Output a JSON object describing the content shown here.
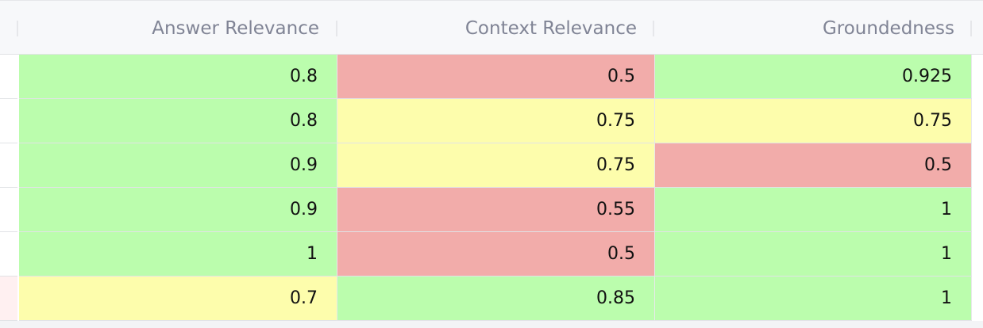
{
  "table": {
    "columns": [
      "Answer Relevance",
      "Context Relevance",
      "Groundedness"
    ],
    "rows": [
      {
        "values": [
          "0.8",
          "0.5",
          "0.925"
        ],
        "status": [
          "good",
          "bad",
          "good"
        ]
      },
      {
        "values": [
          "0.8",
          "0.75",
          "0.75"
        ],
        "status": [
          "good",
          "medium",
          "medium"
        ]
      },
      {
        "values": [
          "0.9",
          "0.75",
          "0.5"
        ],
        "status": [
          "good",
          "medium",
          "bad"
        ]
      },
      {
        "values": [
          "0.9",
          "0.55",
          "1"
        ],
        "status": [
          "good",
          "bad",
          "good"
        ]
      },
      {
        "values": [
          "1",
          "0.5",
          "1"
        ],
        "status": [
          "good",
          "bad",
          "good"
        ]
      },
      {
        "values": [
          "0.7",
          "0.85",
          "1"
        ],
        "status": [
          "medium",
          "good",
          "good"
        ]
      }
    ]
  },
  "colors": {
    "good": "#bbfdad",
    "medium": "#fdfdac",
    "bad": "#f2acaa",
    "header_bg": "#f7f8fa",
    "header_text": "#808495"
  }
}
